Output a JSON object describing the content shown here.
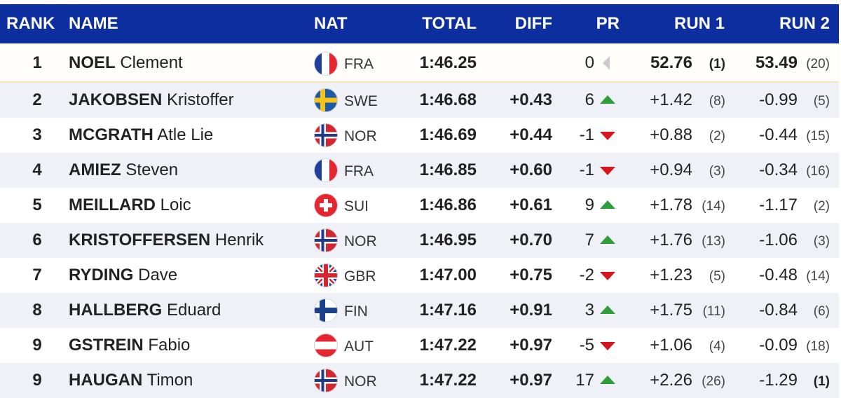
{
  "header": {
    "rank": "RANK",
    "name": "NAME",
    "nat": "NAT",
    "total": "TOTAL",
    "diff": "DIFF",
    "pr": "PR",
    "run1": "RUN 1",
    "run2": "RUN 2"
  },
  "colors": {
    "header_bg": "#0c2e9e",
    "up": "#2e9e3a",
    "down": "#d8141c",
    "neutral": "#cccccc"
  },
  "rows": [
    {
      "rank": "1",
      "last": "NOEL",
      "first": "Clement",
      "flag": "fra-flag-icon",
      "nat": "FRA",
      "total": "1:46.25",
      "diff": "",
      "pr": "0",
      "trend": "neutral",
      "run1": "52.76",
      "run1_rank": "(1)",
      "run2": "53.49",
      "run2_rank": "(20)"
    },
    {
      "rank": "2",
      "last": "JAKOBSEN",
      "first": "Kristoffer",
      "flag": "swe-flag-icon",
      "nat": "SWE",
      "total": "1:46.68",
      "diff": "+0.43",
      "pr": "6",
      "trend": "up",
      "run1": "+1.42",
      "run1_rank": "(8)",
      "run2": "-0.99",
      "run2_rank": "(5)"
    },
    {
      "rank": "3",
      "last": "MCGRATH",
      "first": "Atle Lie",
      "flag": "nor-flag-icon",
      "nat": "NOR",
      "total": "1:46.69",
      "diff": "+0.44",
      "pr": "-1",
      "trend": "down",
      "run1": "+0.88",
      "run1_rank": "(2)",
      "run2": "-0.44",
      "run2_rank": "(15)"
    },
    {
      "rank": "4",
      "last": "AMIEZ",
      "first": "Steven",
      "flag": "fra-flag-icon",
      "nat": "FRA",
      "total": "1:46.85",
      "diff": "+0.60",
      "pr": "-1",
      "trend": "down",
      "run1": "+0.94",
      "run1_rank": "(3)",
      "run2": "-0.34",
      "run2_rank": "(16)"
    },
    {
      "rank": "5",
      "last": "MEILLARD",
      "first": "Loic",
      "flag": "sui-flag-icon",
      "nat": "SUI",
      "total": "1:46.86",
      "diff": "+0.61",
      "pr": "9",
      "trend": "up",
      "run1": "+1.78",
      "run1_rank": "(14)",
      "run2": "-1.17",
      "run2_rank": "(2)"
    },
    {
      "rank": "6",
      "last": "KRISTOFFERSEN",
      "first": "Henrik",
      "flag": "nor-flag-icon",
      "nat": "NOR",
      "total": "1:46.95",
      "diff": "+0.70",
      "pr": "7",
      "trend": "up",
      "run1": "+1.76",
      "run1_rank": "(13)",
      "run2": "-1.06",
      "run2_rank": "(3)"
    },
    {
      "rank": "7",
      "last": "RYDING",
      "first": "Dave",
      "flag": "gbr-flag-icon",
      "nat": "GBR",
      "total": "1:47.00",
      "diff": "+0.75",
      "pr": "-2",
      "trend": "down",
      "run1": "+1.23",
      "run1_rank": "(5)",
      "run2": "-0.48",
      "run2_rank": "(14)"
    },
    {
      "rank": "8",
      "last": "HALLBERG",
      "first": "Eduard",
      "flag": "fin-flag-icon",
      "nat": "FIN",
      "total": "1:47.16",
      "diff": "+0.91",
      "pr": "3",
      "trend": "up",
      "run1": "+1.75",
      "run1_rank": "(11)",
      "run2": "-0.84",
      "run2_rank": "(6)"
    },
    {
      "rank": "9",
      "last": "GSTREIN",
      "first": "Fabio",
      "flag": "aut-flag-icon",
      "nat": "AUT",
      "total": "1:47.22",
      "diff": "+0.97",
      "pr": "-5",
      "trend": "down",
      "run1": "+1.06",
      "run1_rank": "(4)",
      "run2": "-0.09",
      "run2_rank": "(18)"
    },
    {
      "rank": "9",
      "last": "HAUGAN",
      "first": "Timon",
      "flag": "nor-flag-icon",
      "nat": "NOR",
      "total": "1:47.22",
      "diff": "+0.97",
      "pr": "17",
      "trend": "up",
      "run1": "+2.26",
      "run1_rank": "(26)",
      "run2": "-1.29",
      "run2_rank": "(1)"
    }
  ]
}
